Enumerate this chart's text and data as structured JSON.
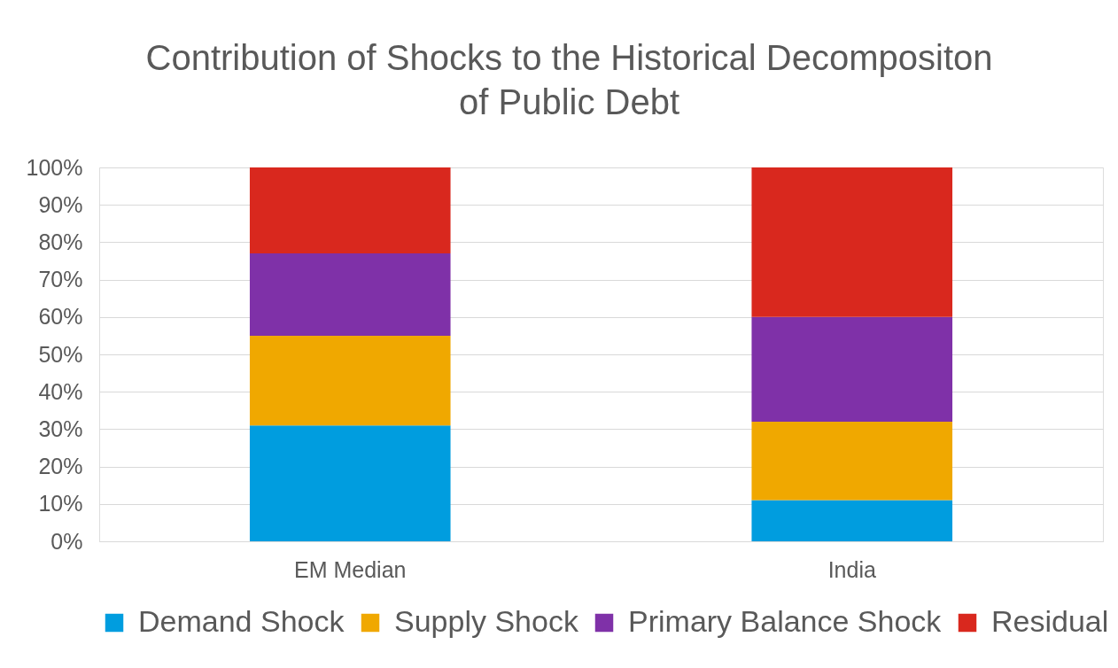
{
  "chart_data": {
    "type": "bar",
    "title": "Contribution of Shocks to the Historical Decompositon of Public Debt",
    "categories": [
      "EM Median",
      "India"
    ],
    "stacked": true,
    "series": [
      {
        "name": "Demand Shock",
        "color": "#009ddf",
        "values": [
          31,
          11
        ]
      },
      {
        "name": "Supply Shock",
        "color": "#f0a800",
        "values": [
          24,
          21
        ]
      },
      {
        "name": "Primary Balance Shock",
        "color": "#7f31a8",
        "values": [
          22,
          28
        ]
      },
      {
        "name": "Residual",
        "color": "#d9281e",
        "values": [
          23,
          40
        ]
      }
    ],
    "ylim": [
      0,
      100
    ],
    "yticks": [
      {
        "value": 0,
        "label": "0%"
      },
      {
        "value": 10,
        "label": "10%"
      },
      {
        "value": 20,
        "label": "20%"
      },
      {
        "value": 30,
        "label": "30%"
      },
      {
        "value": 40,
        "label": "40%"
      },
      {
        "value": 50,
        "label": "50%"
      },
      {
        "value": 60,
        "label": "60%"
      },
      {
        "value": 70,
        "label": "70%"
      },
      {
        "value": 80,
        "label": "80%"
      },
      {
        "value": 90,
        "label": "90%"
      },
      {
        "value": 100,
        "label": "100%"
      }
    ],
    "grid": "y",
    "legend": "bottom"
  }
}
